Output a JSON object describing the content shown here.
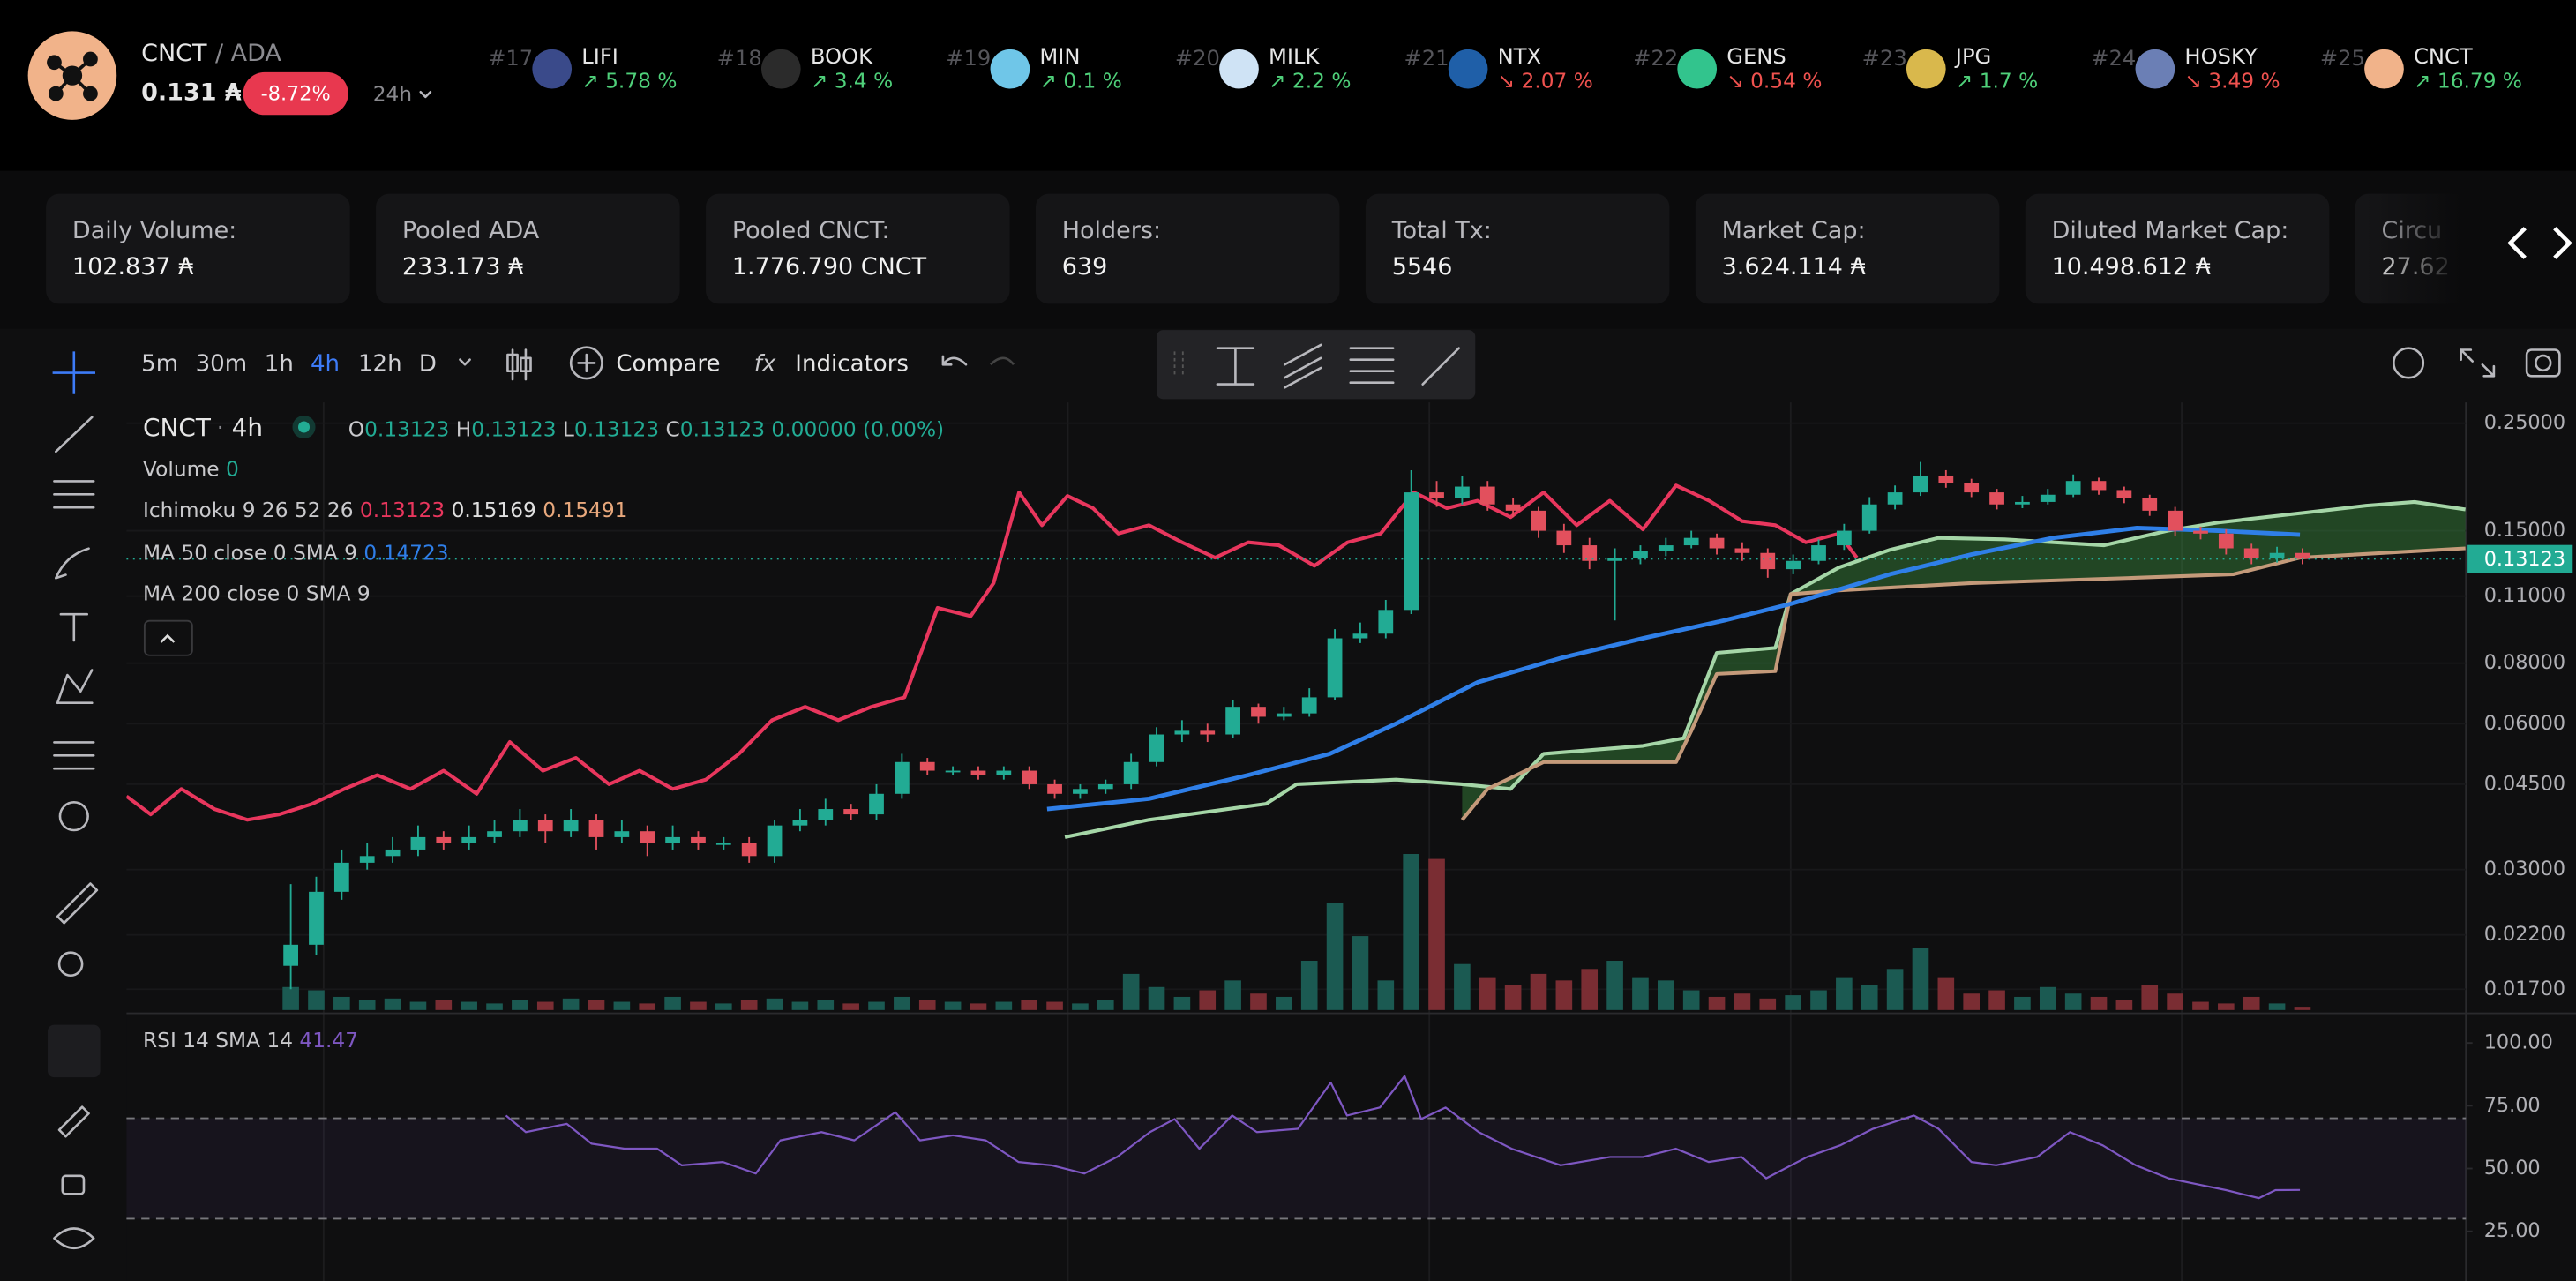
{
  "header": {
    "symbol": "CNCT",
    "quote": "/ ADA",
    "price": "0.131 ₳",
    "change": "-8.72%",
    "period": "24h"
  },
  "tickers": [
    {
      "rank": "#17",
      "name": "LIFI",
      "change": "↗ 5.78 %",
      "direction": "up"
    },
    {
      "rank": "#18",
      "name": "BOOK",
      "change": "↗ 3.4 %",
      "direction": "up"
    },
    {
      "rank": "#19",
      "name": "MIN",
      "change": "↗ 0.1 %",
      "direction": "up"
    },
    {
      "rank": "#20",
      "name": "MILK",
      "change": "↗ 2.2 %",
      "direction": "up"
    },
    {
      "rank": "#21",
      "name": "NTX",
      "change": "↘ 2.07 %",
      "direction": "down"
    },
    {
      "rank": "#22",
      "name": "GENS",
      "change": "↘ 0.54 %",
      "direction": "down"
    },
    {
      "rank": "#23",
      "name": "JPG",
      "change": "↗ 1.7 %",
      "direction": "up"
    },
    {
      "rank": "#24",
      "name": "HOSKY",
      "change": "↘ 3.49 %",
      "direction": "down"
    },
    {
      "rank": "#25",
      "name": "CNCT",
      "change": "↗ 16.79 %",
      "direction": "up"
    }
  ],
  "stats": [
    {
      "label": "Daily Volume:",
      "value": "102.837 ₳"
    },
    {
      "label": "Pooled ADA",
      "value": "233.173 ₳"
    },
    {
      "label": "Pooled CNCT:",
      "value": "1.776.790 CNCT"
    },
    {
      "label": "Holders:",
      "value": "639"
    },
    {
      "label": "Total Tx:",
      "value": "5546"
    },
    {
      "label": "Market Cap:",
      "value": "3.624.114 ₳"
    },
    {
      "label": "Diluted Market Cap:",
      "value": "10.498.612 ₳"
    },
    {
      "label": "Circu",
      "value": "27.62"
    }
  ],
  "toolbar": {
    "intervals": [
      "5m",
      "30m",
      "1h",
      "4h",
      "12h",
      "D"
    ],
    "active_interval": 3,
    "compare": "Compare",
    "indicators": "Indicators"
  },
  "chart_data": {
    "type": "candlestick",
    "symbol": "CNCT",
    "interval": "4h",
    "legend": {
      "ohlc": [
        {
          "key": "O",
          "value": "0.13123"
        },
        {
          "key": "H",
          "value": "0.13123"
        },
        {
          "key": "L",
          "value": "0.13123"
        },
        {
          "key": "C",
          "value": "0.13123"
        }
      ],
      "change": "0.00000 (0.00%)",
      "volume_label": "Volume",
      "volume_value": "0",
      "ichimoku_label": "Ichimoku 9 26 52 26",
      "ichimoku_values": [
        "0.13123",
        "0.15169",
        "0.15491"
      ],
      "ma50_label": "MA 50 close 0 SMA 9",
      "ma50_value": "0.14723",
      "ma200_label": "MA 200 close 0 SMA 9",
      "rsi_label": "RSI 14 SMA 14",
      "rsi_value": "41.47"
    },
    "open": [
      0.019,
      0.021,
      0.027,
      0.031,
      0.032,
      0.033,
      0.035,
      0.034,
      0.035,
      0.036,
      0.038,
      0.036,
      0.038,
      0.035,
      0.036,
      0.034,
      0.035,
      0.034,
      0.034,
      0.032,
      0.037,
      0.038,
      0.04,
      0.039,
      0.043,
      0.05,
      0.048,
      0.048,
      0.047,
      0.048,
      0.045,
      0.043,
      0.044,
      0.045,
      0.05,
      0.057,
      0.058,
      0.057,
      0.065,
      0.062,
      0.063,
      0.068,
      0.09,
      0.092,
      0.103,
      0.18,
      0.175,
      0.185,
      0.17,
      0.165,
      0.15,
      0.14,
      0.13,
      0.132,
      0.136,
      0.14,
      0.145,
      0.138,
      0.135,
      0.125,
      0.13,
      0.14,
      0.15,
      0.17,
      0.18,
      0.195,
      0.188,
      0.18,
      0.17,
      0.172,
      0.178,
      0.19,
      0.182,
      0.175,
      0.165,
      0.15,
      0.148,
      0.138,
      0.132,
      0.135
    ],
    "high": [
      0.028,
      0.029,
      0.033,
      0.034,
      0.035,
      0.037,
      0.036,
      0.037,
      0.038,
      0.04,
      0.039,
      0.04,
      0.039,
      0.038,
      0.037,
      0.037,
      0.036,
      0.035,
      0.035,
      0.038,
      0.04,
      0.042,
      0.041,
      0.045,
      0.052,
      0.051,
      0.049,
      0.049,
      0.049,
      0.049,
      0.046,
      0.045,
      0.046,
      0.052,
      0.059,
      0.061,
      0.06,
      0.067,
      0.066,
      0.065,
      0.071,
      0.094,
      0.097,
      0.108,
      0.2,
      0.19,
      0.195,
      0.19,
      0.175,
      0.168,
      0.155,
      0.145,
      0.138,
      0.14,
      0.145,
      0.15,
      0.148,
      0.142,
      0.138,
      0.134,
      0.144,
      0.155,
      0.176,
      0.186,
      0.208,
      0.2,
      0.192,
      0.183,
      0.177,
      0.183,
      0.196,
      0.193,
      0.185,
      0.178,
      0.168,
      0.153,
      0.151,
      0.141,
      0.139,
      0.138
    ],
    "low": [
      0.017,
      0.02,
      0.026,
      0.03,
      0.031,
      0.032,
      0.033,
      0.033,
      0.034,
      0.035,
      0.034,
      0.035,
      0.033,
      0.034,
      0.032,
      0.033,
      0.033,
      0.033,
      0.031,
      0.031,
      0.036,
      0.037,
      0.038,
      0.038,
      0.042,
      0.047,
      0.047,
      0.046,
      0.046,
      0.044,
      0.042,
      0.042,
      0.043,
      0.044,
      0.049,
      0.055,
      0.055,
      0.056,
      0.06,
      0.061,
      0.062,
      0.067,
      0.088,
      0.09,
      0.101,
      0.168,
      0.17,
      0.165,
      0.16,
      0.145,
      0.135,
      0.125,
      0.098,
      0.128,
      0.133,
      0.138,
      0.134,
      0.13,
      0.12,
      0.122,
      0.128,
      0.137,
      0.148,
      0.166,
      0.177,
      0.184,
      0.176,
      0.166,
      0.167,
      0.17,
      0.176,
      0.178,
      0.171,
      0.161,
      0.146,
      0.144,
      0.134,
      0.128,
      0.129,
      0.128
    ],
    "close": [
      0.021,
      0.027,
      0.031,
      0.032,
      0.033,
      0.035,
      0.034,
      0.035,
      0.036,
      0.038,
      0.036,
      0.038,
      0.035,
      0.036,
      0.034,
      0.035,
      0.034,
      0.034,
      0.032,
      0.037,
      0.038,
      0.04,
      0.039,
      0.043,
      0.05,
      0.048,
      0.048,
      0.047,
      0.048,
      0.045,
      0.043,
      0.044,
      0.045,
      0.05,
      0.057,
      0.058,
      0.057,
      0.065,
      0.062,
      0.063,
      0.068,
      0.09,
      0.092,
      0.103,
      0.18,
      0.175,
      0.185,
      0.17,
      0.165,
      0.15,
      0.14,
      0.13,
      0.132,
      0.136,
      0.14,
      0.145,
      0.138,
      0.135,
      0.125,
      0.13,
      0.14,
      0.15,
      0.17,
      0.18,
      0.195,
      0.188,
      0.18,
      0.17,
      0.172,
      0.178,
      0.19,
      0.182,
      0.175,
      0.165,
      0.15,
      0.148,
      0.138,
      0.132,
      0.135,
      0.13123
    ],
    "volume": [
      14,
      12,
      8,
      6,
      7,
      5,
      6,
      5,
      4,
      6,
      5,
      7,
      6,
      5,
      4,
      8,
      5,
      4,
      6,
      7,
      5,
      6,
      4,
      5,
      8,
      6,
      5,
      4,
      5,
      6,
      5,
      4,
      6,
      22,
      14,
      8,
      12,
      18,
      10,
      8,
      30,
      65,
      45,
      18,
      95,
      92,
      28,
      20,
      15,
      22,
      18,
      25,
      30,
      20,
      18,
      12,
      8,
      10,
      7,
      9,
      12,
      20,
      15,
      25,
      38,
      20,
      10,
      12,
      8,
      14,
      10,
      8,
      6,
      15,
      10,
      5,
      4,
      8,
      4,
      2
    ],
    "up_color": "#22ab94",
    "down_color": "#e2505d",
    "volume_up_color": "#1b5a52",
    "volume_down_color": "#7a2d33",
    "log_scale": true,
    "ylim": [
      0.0154,
      0.276
    ],
    "yticks": [
      {
        "value": 0.25,
        "label": "0.25000"
      },
      {
        "value": 0.15,
        "label": "0.15000"
      },
      {
        "value": 0.11,
        "label": "0.11000"
      },
      {
        "value": 0.08,
        "label": "0.08000"
      },
      {
        "value": 0.06,
        "label": "0.06000"
      },
      {
        "value": 0.045,
        "label": "0.04500"
      },
      {
        "value": 0.03,
        "label": "0.03000"
      },
      {
        "value": 0.022,
        "label": "0.02200"
      },
      {
        "value": 0.017,
        "label": "0.01700"
      }
    ],
    "last_price": {
      "value": 0.13123,
      "label": "0.13123"
    },
    "lagging_span": {
      "color": "#e8365d",
      "x": [
        -6.45,
        -5.5,
        -4.3,
        -3.0,
        -1.7,
        -0.45,
        0.84,
        2.1,
        3.4,
        4.7,
        6.0,
        7.3,
        8.6,
        9.9,
        11.2,
        12.5,
        13.7,
        15.0,
        16.3,
        17.6,
        18.9,
        20.2,
        21.5,
        22.8,
        24.1,
        25.4,
        26.7,
        27.6,
        28.6,
        29.5,
        30.5,
        31.5,
        32.5,
        33.7,
        35.0,
        36.3,
        37.6,
        38.8,
        40.2,
        41.5,
        42.8,
        44.1,
        45.4,
        46.6,
        47.9,
        49.2,
        50.5,
        51.8,
        53.1,
        54.4,
        55.7,
        57.0,
        58.3,
        59.5,
        60.8,
        61.5
      ],
      "values": [
        0.0425,
        0.039,
        0.044,
        0.04,
        0.038,
        0.039,
        0.041,
        0.044,
        0.047,
        0.044,
        0.048,
        0.043,
        0.055,
        0.048,
        0.051,
        0.045,
        0.048,
        0.044,
        0.046,
        0.052,
        0.061,
        0.065,
        0.061,
        0.065,
        0.068,
        0.104,
        0.1,
        0.117,
        0.18,
        0.154,
        0.177,
        0.167,
        0.148,
        0.154,
        0.142,
        0.132,
        0.142,
        0.14,
        0.127,
        0.142,
        0.148,
        0.18,
        0.167,
        0.173,
        0.16,
        0.18,
        0.154,
        0.173,
        0.151,
        0.186,
        0.173,
        0.157,
        0.154,
        0.142,
        0.148,
        0.132
      ]
    },
    "ma50": {
      "color": "#2f7fe8",
      "x": [
        29.7,
        33.7,
        37.6,
        40.8,
        43.4,
        46.6,
        49.9,
        53.1,
        56.3,
        58.9,
        62.8,
        66.0,
        69.2,
        72.5,
        75.7,
        78.9
      ],
      "values": [
        0.04,
        0.042,
        0.047,
        0.052,
        0.06,
        0.073,
        0.082,
        0.09,
        0.098,
        0.106,
        0.122,
        0.134,
        0.145,
        0.152,
        0.15,
        0.14723
      ]
    },
    "span_a": {
      "color": "#a5d6a7",
      "x": [
        30.4,
        33.7,
        38.3,
        39.5,
        43.4,
        46.0,
        47.9,
        49.2,
        53.1,
        54.7,
        56.0,
        58.3,
        58.9,
        60.8,
        62.8,
        64.7,
        67.3,
        71.2,
        73.7,
        75.7,
        78.9,
        81.5,
        83.4,
        85.4
      ],
      "values": [
        0.035,
        0.038,
        0.041,
        0.045,
        0.046,
        0.045,
        0.044,
        0.052,
        0.054,
        0.056,
        0.084,
        0.086,
        0.111,
        0.126,
        0.137,
        0.145,
        0.144,
        0.14,
        0.15,
        0.156,
        0.163,
        0.169,
        0.172,
        0.166
      ]
    },
    "span_b": {
      "color": "#c49a7a",
      "x": [
        46.0,
        47.0,
        49.2,
        54.4,
        55.0,
        56.0,
        58.3,
        58.9,
        60.8,
        66.0,
        72.5,
        76.3,
        78.9,
        85.4
      ],
      "values": [
        0.038,
        0.044,
        0.05,
        0.05,
        0.058,
        0.076,
        0.077,
        0.111,
        0.113,
        0.117,
        0.12,
        0.122,
        0.132,
        0.138
      ]
    },
    "cloud_color": "rgba(67,160,71,0.38)",
    "rsi": {
      "color": "#7e57c2",
      "ylim": [
        8.5,
        111.8
      ],
      "band": [
        30,
        70
      ],
      "yticks": [
        {
          "value": 100,
          "label": "100.00"
        },
        {
          "value": 75,
          "label": "75.00"
        },
        {
          "value": 50,
          "label": "50.00"
        },
        {
          "value": 25,
          "label": "25.00"
        }
      ],
      "x": [
        8.45,
        9.23,
        10.84,
        11.81,
        13.1,
        14.39,
        15.35,
        16.97,
        18.26,
        19.23,
        20.84,
        22.13,
        23.74,
        24.71,
        26.0,
        27.29,
        28.58,
        29.87,
        31.16,
        32.45,
        33.74,
        34.71,
        35.68,
        36.97,
        37.94,
        39.55,
        40.84,
        41.48,
        42.77,
        43.74,
        44.39,
        45.35,
        46.65,
        47.94,
        49.87,
        51.81,
        53.1,
        54.39,
        55.68,
        56.97,
        57.94,
        59.55,
        60.84,
        62.13,
        63.74,
        64.71,
        66.0,
        66.97,
        68.58,
        69.87,
        71.16,
        72.45,
        73.74,
        75.03,
        76.0,
        77.29,
        77.94,
        78.9
      ],
      "values": [
        71.1,
        64.5,
        67.8,
        59.9,
        57.9,
        57.9,
        51.3,
        52.6,
        48.0,
        61.2,
        64.5,
        61.2,
        72.4,
        61.2,
        63.2,
        61.2,
        52.6,
        51.3,
        48.0,
        54.6,
        64.5,
        69.7,
        57.9,
        71.1,
        64.5,
        65.8,
        84.2,
        71.1,
        74.3,
        86.8,
        69.7,
        74.3,
        64.5,
        57.9,
        51.3,
        54.6,
        54.6,
        57.9,
        52.6,
        54.6,
        46.1,
        54.6,
        59.2,
        65.8,
        71.1,
        65.8,
        52.6,
        51.3,
        54.6,
        64.5,
        59.2,
        51.3,
        46.1,
        43.4,
        41.4,
        38.2,
        41.4,
        41.47
      ]
    }
  }
}
